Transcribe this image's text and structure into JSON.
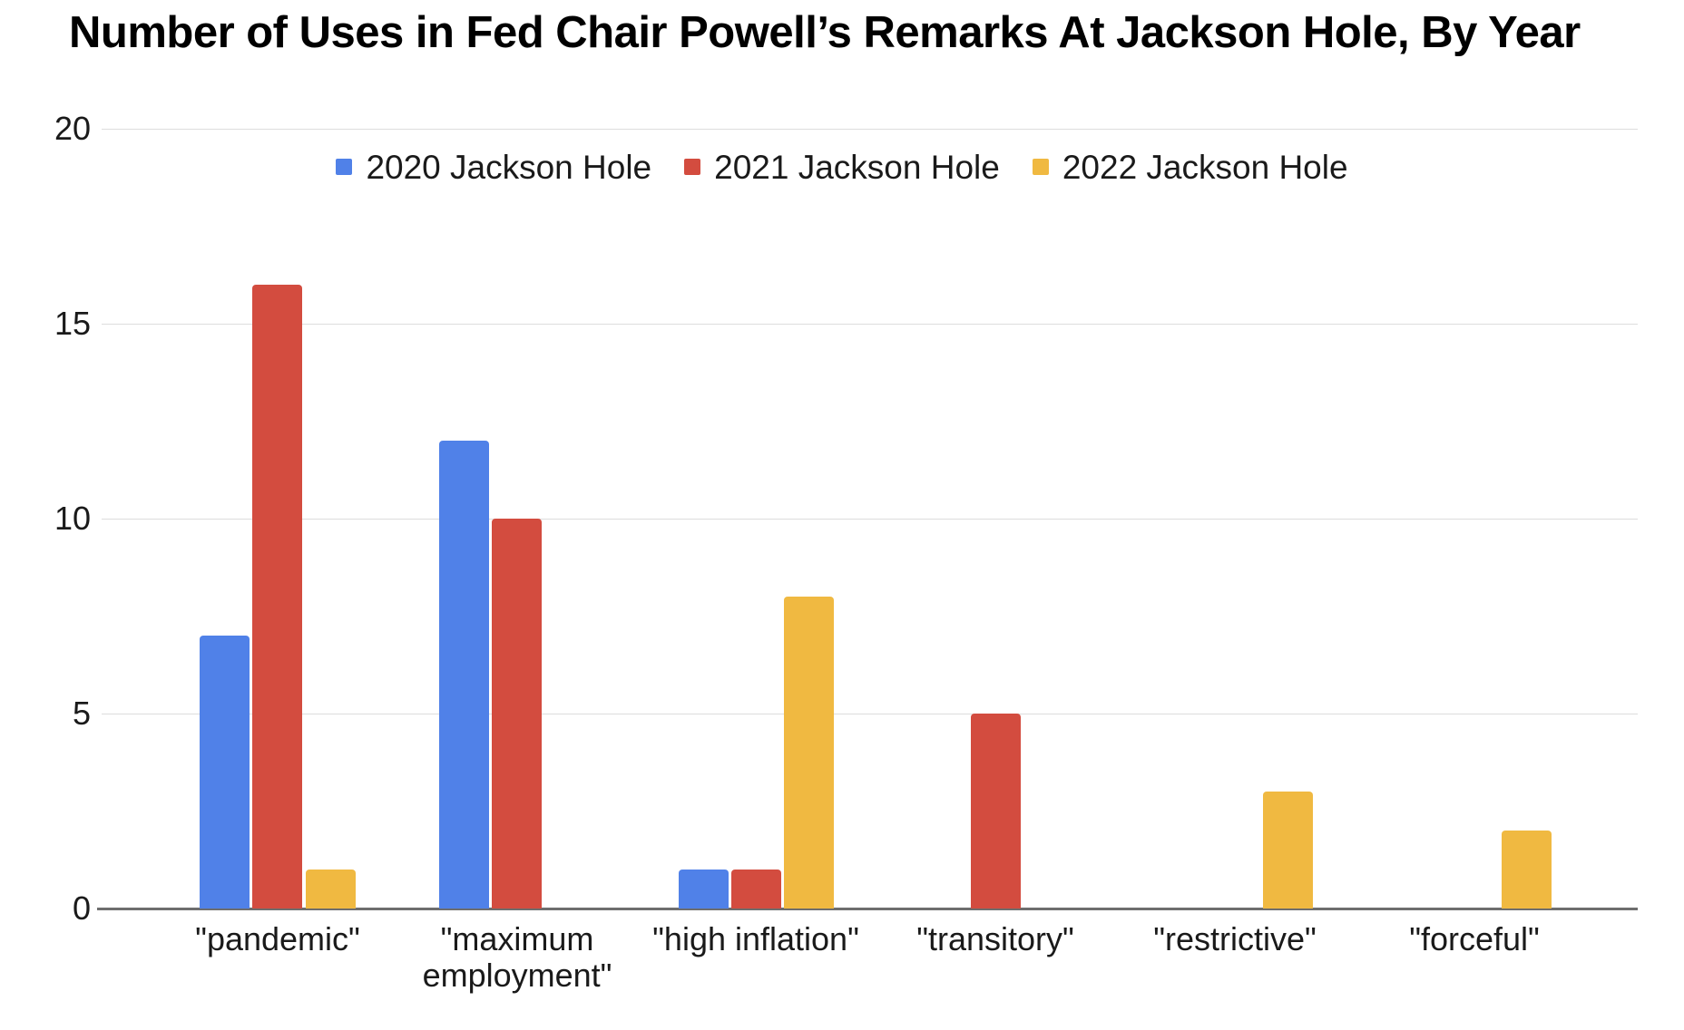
{
  "page": {
    "background": "#FFFFFF"
  },
  "chart_data": {
    "type": "bar",
    "title": "Number of Uses in Fed Chair Powell’s Remarks At Jackson Hole, By Year",
    "categories": [
      "\"pandemic\"",
      "\"maximum employment\"",
      "\"high inflation\"",
      "\"transitory\"",
      "\"restrictive\"",
      "\"forceful\""
    ],
    "series": [
      {
        "name": "2020 Jackson Hole",
        "color": "#5081E8",
        "values": [
          7,
          12,
          1,
          0,
          0,
          0
        ]
      },
      {
        "name": "2021 Jackson Hole",
        "color": "#D34C3F",
        "values": [
          16,
          10,
          1,
          5,
          0,
          0
        ]
      },
      {
        "name": "2022 Jackson Hole",
        "color": "#F0B941",
        "values": [
          1,
          0,
          8,
          0,
          3,
          2
        ]
      }
    ],
    "y_ticks": [
      0,
      5,
      10,
      15,
      20
    ],
    "ylim": [
      0,
      20
    ],
    "xlabel": "",
    "ylabel": "",
    "grid": true,
    "legend_position": "top-center",
    "colors": {
      "axis_line": "#6E6E6E",
      "gridline": "#DDDDDD",
      "label_text": "#1A1A1A",
      "title_text": "#000000"
    }
  }
}
